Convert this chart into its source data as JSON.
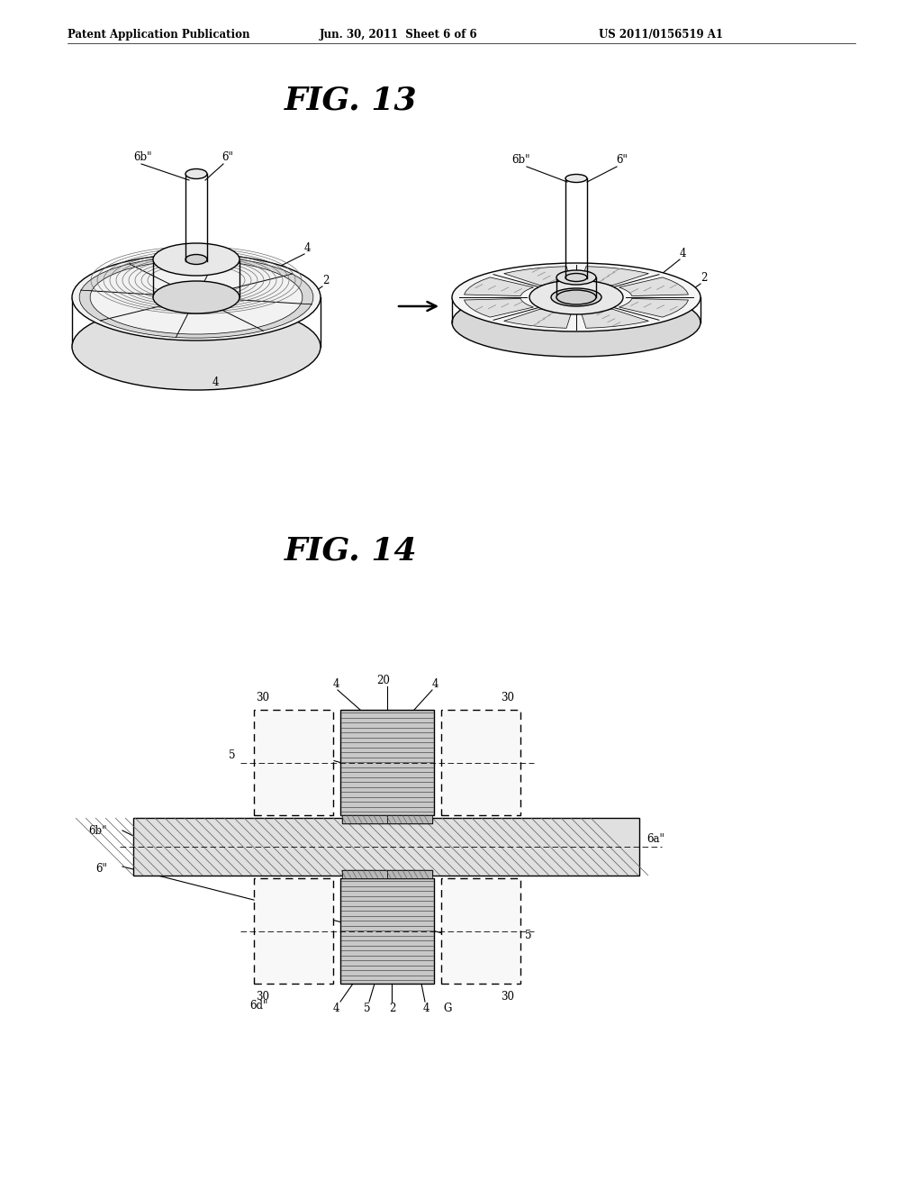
{
  "background_color": "#ffffff",
  "header_left": "Patent Application Publication",
  "header_mid": "Jun. 30, 2011  Sheet 6 of 6",
  "header_right": "US 2011/0156519 A1",
  "fig13_title": "FIG. 13",
  "fig14_title": "FIG. 14",
  "lc": "#000000",
  "gray1": "#e8e8e8",
  "gray2": "#d0d0d0",
  "gray3": "#b8b8b8",
  "hatch_gray": "#888888"
}
